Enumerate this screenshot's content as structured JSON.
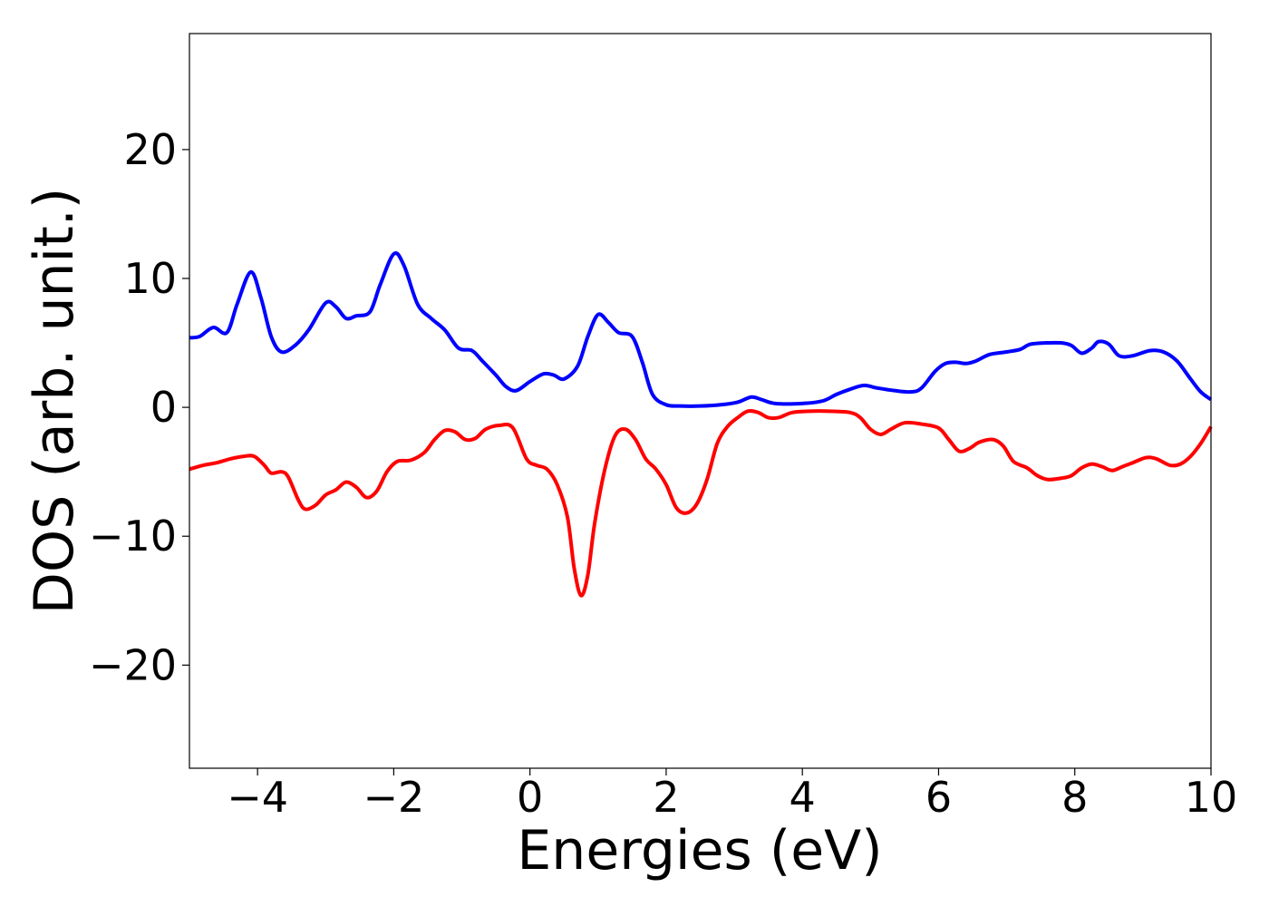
{
  "chart_data": {
    "type": "line",
    "title": "",
    "xlabel": "Energies (eV)",
    "ylabel": "DOS (arb. unit.)",
    "xlim": [
      -5,
      10
    ],
    "ylim": [
      -28,
      29
    ],
    "x_ticks": [
      -4,
      -2,
      0,
      2,
      4,
      6,
      8,
      10
    ],
    "x_tick_labels": [
      "−4",
      "−2",
      "0",
      "2",
      "4",
      "6",
      "8",
      "10"
    ],
    "y_ticks": [
      -20,
      -10,
      0,
      10,
      20
    ],
    "y_tick_labels": [
      "−20",
      "−10",
      "0",
      "10",
      "20"
    ],
    "grid": false,
    "legend": "none",
    "series": [
      {
        "color": "#0000ff",
        "points": [
          [
            -5,
            5.4
          ],
          [
            -4.85,
            5.5
          ],
          [
            -4.65,
            6.2
          ],
          [
            -4.45,
            5.8
          ],
          [
            -4.3,
            8.0
          ],
          [
            -4.1,
            10.5
          ],
          [
            -3.95,
            8.5
          ],
          [
            -3.8,
            5.5
          ],
          [
            -3.65,
            4.3
          ],
          [
            -3.45,
            4.8
          ],
          [
            -3.25,
            6.0
          ],
          [
            -3.0,
            8.1
          ],
          [
            -2.85,
            7.8
          ],
          [
            -2.7,
            6.9
          ],
          [
            -2.55,
            7.1
          ],
          [
            -2.35,
            7.4
          ],
          [
            -2.2,
            9.5
          ],
          [
            -2.0,
            11.9
          ],
          [
            -1.85,
            11.0
          ],
          [
            -1.65,
            8.0
          ],
          [
            -1.45,
            6.9
          ],
          [
            -1.25,
            6.0
          ],
          [
            -1.05,
            4.6
          ],
          [
            -0.85,
            4.4
          ],
          [
            -0.7,
            3.6
          ],
          [
            -0.5,
            2.5
          ],
          [
            -0.35,
            1.6
          ],
          [
            -0.2,
            1.3
          ],
          [
            0,
            2.0
          ],
          [
            0.2,
            2.6
          ],
          [
            0.35,
            2.5
          ],
          [
            0.5,
            2.2
          ],
          [
            0.7,
            3.2
          ],
          [
            0.85,
            5.5
          ],
          [
            1.0,
            7.2
          ],
          [
            1.15,
            6.6
          ],
          [
            1.3,
            5.8
          ],
          [
            1.5,
            5.5
          ],
          [
            1.65,
            3.5
          ],
          [
            1.8,
            1.0
          ],
          [
            2.0,
            0.2
          ],
          [
            2.2,
            0.1
          ],
          [
            2.5,
            0.1
          ],
          [
            2.8,
            0.2
          ],
          [
            3.05,
            0.4
          ],
          [
            3.25,
            0.8
          ],
          [
            3.4,
            0.6
          ],
          [
            3.6,
            0.3
          ],
          [
            4.0,
            0.3
          ],
          [
            4.3,
            0.5
          ],
          [
            4.5,
            1.0
          ],
          [
            4.7,
            1.4
          ],
          [
            4.9,
            1.7
          ],
          [
            5.1,
            1.5
          ],
          [
            5.35,
            1.3
          ],
          [
            5.6,
            1.2
          ],
          [
            5.75,
            1.5
          ],
          [
            5.95,
            2.8
          ],
          [
            6.1,
            3.4
          ],
          [
            6.25,
            3.5
          ],
          [
            6.4,
            3.4
          ],
          [
            6.55,
            3.6
          ],
          [
            6.75,
            4.1
          ],
          [
            7.0,
            4.3
          ],
          [
            7.2,
            4.5
          ],
          [
            7.35,
            4.9
          ],
          [
            7.6,
            5.0
          ],
          [
            7.8,
            5.0
          ],
          [
            7.95,
            4.8
          ],
          [
            8.1,
            4.2
          ],
          [
            8.25,
            4.6
          ],
          [
            8.35,
            5.1
          ],
          [
            8.5,
            4.9
          ],
          [
            8.65,
            4.0
          ],
          [
            8.85,
            4.0
          ],
          [
            9.1,
            4.4
          ],
          [
            9.3,
            4.3
          ],
          [
            9.5,
            3.6
          ],
          [
            9.7,
            2.2
          ],
          [
            9.85,
            1.2
          ],
          [
            10,
            0.6
          ]
        ]
      },
      {
        "color": "#ff0000",
        "points": [
          [
            -5,
            -4.8
          ],
          [
            -4.8,
            -4.5
          ],
          [
            -4.6,
            -4.3
          ],
          [
            -4.4,
            -4.0
          ],
          [
            -4.2,
            -3.8
          ],
          [
            -4.05,
            -3.8
          ],
          [
            -3.9,
            -4.5
          ],
          [
            -3.8,
            -5.1
          ],
          [
            -3.65,
            -5.0
          ],
          [
            -3.55,
            -5.4
          ],
          [
            -3.4,
            -7.2
          ],
          [
            -3.3,
            -7.9
          ],
          [
            -3.15,
            -7.6
          ],
          [
            -3.0,
            -6.8
          ],
          [
            -2.85,
            -6.4
          ],
          [
            -2.7,
            -5.8
          ],
          [
            -2.55,
            -6.2
          ],
          [
            -2.4,
            -7.0
          ],
          [
            -2.25,
            -6.5
          ],
          [
            -2.1,
            -5.0
          ],
          [
            -1.95,
            -4.2
          ],
          [
            -1.75,
            -4.1
          ],
          [
            -1.55,
            -3.5
          ],
          [
            -1.4,
            -2.5
          ],
          [
            -1.25,
            -1.8
          ],
          [
            -1.1,
            -1.9
          ],
          [
            -0.95,
            -2.5
          ],
          [
            -0.8,
            -2.4
          ],
          [
            -0.65,
            -1.7
          ],
          [
            -0.45,
            -1.4
          ],
          [
            -0.25,
            -1.6
          ],
          [
            -0.05,
            -4.0
          ],
          [
            0.1,
            -4.5
          ],
          [
            0.25,
            -4.8
          ],
          [
            0.4,
            -6.0
          ],
          [
            0.55,
            -8.5
          ],
          [
            0.65,
            -12.5
          ],
          [
            0.75,
            -14.6
          ],
          [
            0.85,
            -13.0
          ],
          [
            0.95,
            -9.0
          ],
          [
            1.1,
            -4.8
          ],
          [
            1.25,
            -2.2
          ],
          [
            1.4,
            -1.7
          ],
          [
            1.55,
            -2.5
          ],
          [
            1.7,
            -4.0
          ],
          [
            1.85,
            -4.8
          ],
          [
            2.0,
            -6.0
          ],
          [
            2.15,
            -7.8
          ],
          [
            2.3,
            -8.2
          ],
          [
            2.45,
            -7.5
          ],
          [
            2.6,
            -5.6
          ],
          [
            2.75,
            -2.8
          ],
          [
            2.9,
            -1.5
          ],
          [
            3.05,
            -0.8
          ],
          [
            3.2,
            -0.3
          ],
          [
            3.35,
            -0.4
          ],
          [
            3.5,
            -0.8
          ],
          [
            3.65,
            -0.8
          ],
          [
            3.85,
            -0.4
          ],
          [
            4.1,
            -0.3
          ],
          [
            4.4,
            -0.3
          ],
          [
            4.7,
            -0.4
          ],
          [
            4.85,
            -0.8
          ],
          [
            5.0,
            -1.7
          ],
          [
            5.15,
            -2.1
          ],
          [
            5.3,
            -1.7
          ],
          [
            5.5,
            -1.2
          ],
          [
            5.75,
            -1.3
          ],
          [
            6.0,
            -1.6
          ],
          [
            6.15,
            -2.5
          ],
          [
            6.3,
            -3.4
          ],
          [
            6.45,
            -3.2
          ],
          [
            6.6,
            -2.7
          ],
          [
            6.8,
            -2.5
          ],
          [
            6.95,
            -3.0
          ],
          [
            7.1,
            -4.2
          ],
          [
            7.3,
            -4.7
          ],
          [
            7.45,
            -5.3
          ],
          [
            7.6,
            -5.6
          ],
          [
            7.8,
            -5.5
          ],
          [
            7.95,
            -5.3
          ],
          [
            8.1,
            -4.7
          ],
          [
            8.25,
            -4.4
          ],
          [
            8.4,
            -4.6
          ],
          [
            8.55,
            -4.9
          ],
          [
            8.7,
            -4.6
          ],
          [
            8.85,
            -4.3
          ],
          [
            9.05,
            -3.9
          ],
          [
            9.2,
            -4.0
          ],
          [
            9.4,
            -4.5
          ],
          [
            9.55,
            -4.4
          ],
          [
            9.7,
            -3.8
          ],
          [
            9.85,
            -2.8
          ],
          [
            10,
            -1.5
          ]
        ]
      }
    ]
  }
}
